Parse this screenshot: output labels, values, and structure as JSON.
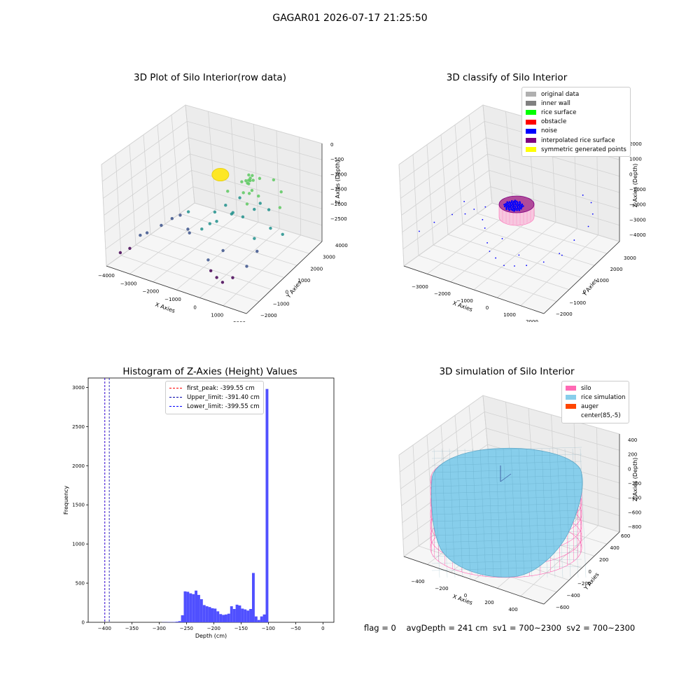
{
  "figure": {
    "suptitle": "GAGAR01 2026-07-17 21:25:50",
    "footer": {
      "flag": "flag = 0",
      "avg_depth": "avgDepth = 241 cm",
      "sv1": "sv1 = 700~2300",
      "sv2": "sv2 = 700~2300"
    }
  },
  "chart_data": [
    {
      "type": "scatter",
      "title": "3D Plot of Silo Interior(row data)",
      "xlabel": "X Axies",
      "ylabel": "Y Axies",
      "zlabel": "Z Axies (Depth)",
      "x_ticks": [
        "−4000",
        "−3000",
        "−2000",
        "−1000",
        "0",
        "1000",
        "2000"
      ],
      "y_ticks": [
        "−2000",
        "−1000",
        "0",
        "1000",
        "2000",
        "3000",
        "4000"
      ],
      "z_ticks": [
        "0",
        "−500",
        "−1000",
        "−1500",
        "−2000",
        "−2500"
      ],
      "colormap": [
        "#440154",
        "#3b528b",
        "#21918c",
        "#5ec962",
        "#fde725"
      ],
      "points": [
        {
          "x": -3900,
          "y": -1600,
          "z": -2350
        },
        {
          "x": -3700,
          "y": -1200,
          "z": -2300
        },
        {
          "x": -3500,
          "y": -700,
          "z": -2050
        },
        {
          "x": -3300,
          "y": -500,
          "z": -2000
        },
        {
          "x": -3000,
          "y": 100,
          "z": -1900
        },
        {
          "x": -2600,
          "y": 300,
          "z": -1700
        },
        {
          "x": -2400,
          "y": 600,
          "z": -1650
        },
        {
          "x": -2200,
          "y": 900,
          "z": -1600
        },
        {
          "x": -1400,
          "y": -300,
          "z": -1700
        },
        {
          "x": -1000,
          "y": 0,
          "z": -1600
        },
        {
          "x": -800,
          "y": 300,
          "z": -1500
        },
        {
          "x": -600,
          "y": 500,
          "z": -1450
        },
        {
          "x": -500,
          "y": -400,
          "z": -2200
        },
        {
          "x": -200,
          "y": -700,
          "z": -2350
        },
        {
          "x": 200,
          "y": -900,
          "z": -2400
        },
        {
          "x": 600,
          "y": -1100,
          "z": -2400
        },
        {
          "x": 900,
          "y": -800,
          "z": -2300
        },
        {
          "x": 1200,
          "y": -200,
          "z": -2100
        },
        {
          "x": 1400,
          "y": 300,
          "z": -1800
        },
        {
          "x": 1700,
          "y": 900,
          "z": -1300
        },
        {
          "x": 1800,
          "y": 1500,
          "z": -900
        },
        {
          "x": 1500,
          "y": 2100,
          "z": -700
        },
        {
          "x": 900,
          "y": 2500,
          "z": -600
        },
        {
          "x": 300,
          "y": 2400,
          "z": -650
        },
        {
          "x": -300,
          "y": 2000,
          "z": -750
        },
        {
          "x": -600,
          "y": 1400,
          "z": -900
        },
        {
          "x": -400,
          "y": 900,
          "z": -1100
        },
        {
          "x": 0,
          "y": 700,
          "z": -1200
        },
        {
          "x": 400,
          "y": 900,
          "z": -1250
        },
        {
          "x": 700,
          "y": 1300,
          "z": -1100
        },
        {
          "x": 300,
          "y": 1600,
          "z": -500
        },
        {
          "x": 350,
          "y": 1650,
          "z": -450
        },
        {
          "x": 250,
          "y": 1700,
          "z": -400
        },
        {
          "x": 400,
          "y": 1550,
          "z": -480
        },
        {
          "x": 300,
          "y": 1500,
          "z": -550
        },
        {
          "x": 200,
          "y": 1550,
          "z": -520
        },
        {
          "x": 450,
          "y": 1700,
          "z": -500
        },
        {
          "x": 350,
          "y": 1800,
          "z": -420
        },
        {
          "x": 280,
          "y": 1620,
          "z": -600
        },
        {
          "x": 500,
          "y": 1500,
          "z": -700
        },
        {
          "x": 150,
          "y": 1400,
          "z": -800
        },
        {
          "x": 600,
          "y": 1800,
          "z": -900
        },
        {
          "x": 100,
          "y": 1900,
          "z": -950
        },
        {
          "x": -100,
          "y": 1500,
          "z": -1000
        },
        {
          "x": 800,
          "y": 1600,
          "z": -1000
        },
        {
          "x": 500,
          "y": 1100,
          "z": -950
        },
        {
          "x": -200,
          "y": 1100,
          "z": -1300
        },
        {
          "x": 1000,
          "y": 1900,
          "z": -1200
        },
        {
          "x": -800,
          "y": 700,
          "z": -1300
        },
        {
          "x": 1100,
          "y": 600,
          "z": -1600
        },
        {
          "x": 100,
          "y": -200,
          "z": -1900
        },
        {
          "x": -1800,
          "y": 200,
          "z": -1800
        },
        {
          "x": 2000,
          "y": 1300,
          "z": -1500
        }
      ]
    },
    {
      "type": "scatter",
      "title": "3D classify of Silo Interior",
      "xlabel": "X Axies",
      "ylabel": "Y Axies",
      "zlabel": "Z Axies (Depth)",
      "x_ticks": [
        "−3000",
        "−2000",
        "−1000",
        "0",
        "1000",
        "2000"
      ],
      "y_ticks": [
        "−2000",
        "−1000",
        "0",
        "1000",
        "2000",
        "3000"
      ],
      "z_ticks": [
        "2000",
        "1000",
        "0",
        "−1000",
        "−2000",
        "−3000",
        "−4000"
      ],
      "legend_position": "upper right",
      "legend": [
        {
          "label": "original data",
          "color": "#b0b0b0"
        },
        {
          "label": "inner wall",
          "color": "#808080"
        },
        {
          "label": "rice surface",
          "color": "#00ff00"
        },
        {
          "label": "obstacle",
          "color": "#ff0000"
        },
        {
          "label": "noise",
          "color": "#0000ff"
        },
        {
          "label": "interpolated rice surface",
          "color": "#800080"
        },
        {
          "label": "symmetric generated points",
          "color": "#ffff00"
        }
      ],
      "noise_points": [
        {
          "x": -3600,
          "y": -1500,
          "z": -2600
        },
        {
          "x": -3400,
          "y": -800,
          "z": -2400
        },
        {
          "x": -3000,
          "y": -200,
          "z": -2100
        },
        {
          "x": -2700,
          "y": 200,
          "z": -2200
        },
        {
          "x": -2500,
          "y": 500,
          "z": -2000
        },
        {
          "x": -2200,
          "y": 800,
          "z": -1900
        },
        {
          "x": -2000,
          "y": 300,
          "z": -2300
        },
        {
          "x": -1700,
          "y": 0,
          "z": -2500
        },
        {
          "x": -1200,
          "y": -600,
          "z": -2800
        },
        {
          "x": -900,
          "y": -900,
          "z": -3000
        },
        {
          "x": -500,
          "y": -1100,
          "z": -3100
        },
        {
          "x": 0,
          "y": -1300,
          "z": -3200
        },
        {
          "x": 400,
          "y": -1200,
          "z": -3100
        },
        {
          "x": 800,
          "y": -1000,
          "z": -3000
        },
        {
          "x": 1300,
          "y": -600,
          "z": -2800
        },
        {
          "x": 1600,
          "y": 0,
          "z": -2500
        },
        {
          "x": 1800,
          "y": 700,
          "z": -2000
        },
        {
          "x": 1900,
          "y": 1500,
          "z": -1600
        },
        {
          "x": 1700,
          "y": 2100,
          "z": -1300
        },
        {
          "x": 1300,
          "y": 2600,
          "z": -1100
        },
        {
          "x": 800,
          "y": 2800,
          "z": -1000
        },
        {
          "x": -1400,
          "y": 1200,
          "z": -1600
        },
        {
          "x": -3000,
          "y": 600,
          "z": -1800
        },
        {
          "x": 1500,
          "y": 300,
          "z": -2900
        },
        {
          "x": -800,
          "y": -200,
          "z": -2600
        },
        {
          "x": 200,
          "y": -600,
          "z": -2900
        }
      ],
      "center_cluster": {
        "x": 150,
        "y": 1450,
        "z": -1800,
        "spread": 200
      }
    },
    {
      "type": "bar",
      "title": "Histogram of Z-Axies (Height) Values",
      "xlabel": "Depth (cm)",
      "ylabel": "Frequency",
      "xlim": [
        -430,
        20
      ],
      "ylim": [
        0,
        3120
      ],
      "x_ticks": [
        -400,
        -350,
        -300,
        -250,
        -200,
        -150,
        -100,
        -50,
        0
      ],
      "x_tick_labels": [
        "−400",
        "−350",
        "−300",
        "−250",
        "−200",
        "−150",
        "−100",
        "−50",
        "0"
      ],
      "y_ticks": [
        0,
        500,
        1000,
        1500,
        2000,
        2500,
        3000
      ],
      "bin_width": 5,
      "bars": [
        {
          "x0": -295,
          "v": 2
        },
        {
          "x0": -290,
          "v": 2
        },
        {
          "x0": -285,
          "v": 3
        },
        {
          "x0": -280,
          "v": 3
        },
        {
          "x0": -275,
          "v": 5
        },
        {
          "x0": -270,
          "v": 8
        },
        {
          "x0": -265,
          "v": 15
        },
        {
          "x0": -260,
          "v": 90
        },
        {
          "x0": -255,
          "v": 395
        },
        {
          "x0": -250,
          "v": 390
        },
        {
          "x0": -245,
          "v": 370
        },
        {
          "x0": -240,
          "v": 360
        },
        {
          "x0": -235,
          "v": 405
        },
        {
          "x0": -230,
          "v": 350
        },
        {
          "x0": -225,
          "v": 295
        },
        {
          "x0": -220,
          "v": 220
        },
        {
          "x0": -215,
          "v": 205
        },
        {
          "x0": -210,
          "v": 195
        },
        {
          "x0": -205,
          "v": 180
        },
        {
          "x0": -200,
          "v": 175
        },
        {
          "x0": -195,
          "v": 140
        },
        {
          "x0": -190,
          "v": 105
        },
        {
          "x0": -185,
          "v": 95
        },
        {
          "x0": -180,
          "v": 100
        },
        {
          "x0": -175,
          "v": 110
        },
        {
          "x0": -170,
          "v": 205
        },
        {
          "x0": -165,
          "v": 170
        },
        {
          "x0": -160,
          "v": 225
        },
        {
          "x0": -155,
          "v": 215
        },
        {
          "x0": -150,
          "v": 175
        },
        {
          "x0": -145,
          "v": 165
        },
        {
          "x0": -140,
          "v": 150
        },
        {
          "x0": -135,
          "v": 170
        },
        {
          "x0": -130,
          "v": 630
        },
        {
          "x0": -125,
          "v": 75
        },
        {
          "x0": -120,
          "v": 30
        },
        {
          "x0": -115,
          "v": 75
        },
        {
          "x0": -110,
          "v": 100
        },
        {
          "x0": -105,
          "v": 2980
        }
      ],
      "vlines": [
        {
          "x": -399.55,
          "label": "first_peak: -399.55 cm",
          "color": "#ff0000"
        },
        {
          "x": -391.4,
          "label": "Upper_limit: -391.40 cm",
          "color": "#0000aa"
        },
        {
          "x": -399.55,
          "label": "Lower_limit: -399.55 cm",
          "color": "#0000ff"
        }
      ],
      "legend_position": "upper center"
    },
    {
      "type": "surface",
      "title": "3D simulation of Silo Interior",
      "xlabel": "X Axies",
      "ylabel": "Y Axies",
      "zlabel": "Z Axies (Depth)",
      "x_ticks": [
        "−400",
        "−200",
        "0",
        "200",
        "400",
        "600"
      ],
      "y_ticks": [
        "−600",
        "−400",
        "−200",
        "0",
        "200",
        "400",
        "600"
      ],
      "z_ticks": [
        "400",
        "200",
        "0",
        "−200",
        "−400",
        "−600",
        "−800"
      ],
      "legend_position": "upper right",
      "legend": [
        {
          "label": "silo",
          "color": "#ff69b4"
        },
        {
          "label": "rice simulation",
          "color": "#87ceeb"
        },
        {
          "label": "auger",
          "color": "#ff4500"
        },
        {
          "label": "center(85,-5)",
          "color": "#ffffff"
        }
      ]
    }
  ]
}
